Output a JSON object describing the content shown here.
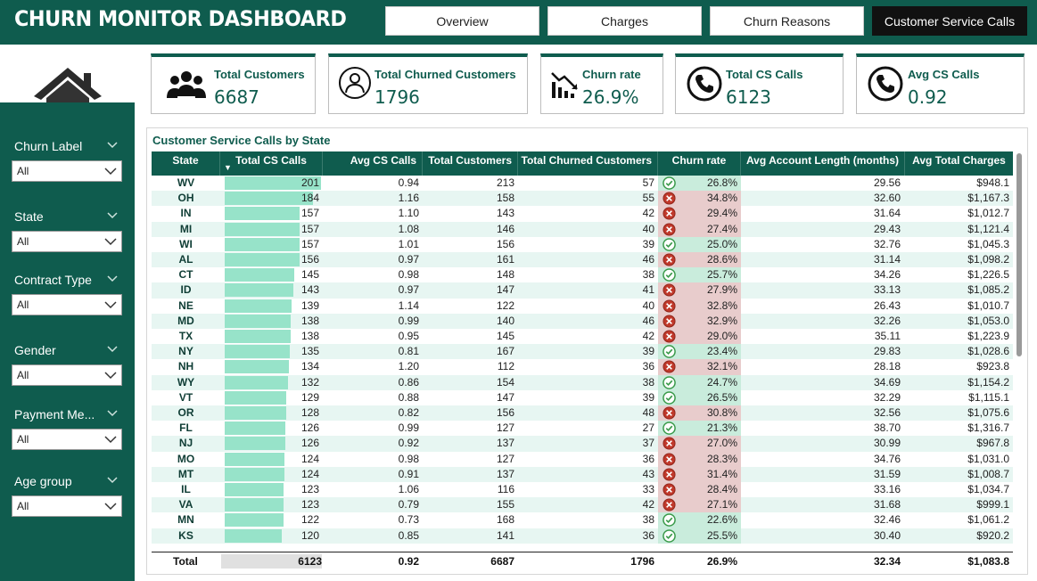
{
  "header": {
    "title": "CHURN MONITOR DASHBOARD",
    "nav": [
      {
        "label": "Overview",
        "active": false
      },
      {
        "label": "Charges",
        "active": false
      },
      {
        "label": "Churn Reasons",
        "active": false
      },
      {
        "label": "Customer Service Calls",
        "active": true
      }
    ]
  },
  "sidebar": {
    "home_icon": "home-icon",
    "filters": [
      {
        "label": "Churn Label",
        "value": "All"
      },
      {
        "label": "State",
        "value": "All"
      },
      {
        "label": "Contract Type",
        "value": "All"
      },
      {
        "label": "Gender",
        "value": "All"
      },
      {
        "label": "Payment Me...",
        "value": "All"
      },
      {
        "label": "Age group",
        "value": "All"
      }
    ]
  },
  "kpis": [
    {
      "label": "Total Customers",
      "value": "6687",
      "icon": "people-icon"
    },
    {
      "label": "Total Churned Customers",
      "value": "1796",
      "icon": "user-circle-icon"
    },
    {
      "label": "Churn rate",
      "value": "26.9%",
      "icon": "trend-down-icon"
    },
    {
      "label": "Total CS Calls",
      "value": "6123",
      "icon": "phone-icon"
    },
    {
      "label": "Avg CS Calls",
      "value": "0.92",
      "icon": "phone-icon"
    }
  ],
  "table": {
    "title": "Customer Service Calls by State",
    "columns": [
      "State",
      "Total CS Calls",
      "Avg CS Calls",
      "Total Customers",
      "Total Churned Customers",
      "Churn rate",
      "Avg Account Length (months)",
      "Avg Total Charges"
    ],
    "sort_indicator": "▼",
    "bar_max": 201,
    "rows": [
      {
        "state": "WV",
        "cs_calls": "201",
        "avg_cs": "0.94",
        "customers": "213",
        "churned": "57",
        "status": "ok",
        "churn_rate": "26.8%",
        "acct_len": "29.56",
        "charges": "$948.1"
      },
      {
        "state": "OH",
        "cs_calls": "184",
        "avg_cs": "1.16",
        "customers": "158",
        "churned": "55",
        "status": "bad",
        "churn_rate": "34.8%",
        "acct_len": "32.60",
        "charges": "$1,167.3"
      },
      {
        "state": "IN",
        "cs_calls": "157",
        "avg_cs": "1.10",
        "customers": "143",
        "churned": "42",
        "status": "bad",
        "churn_rate": "29.4%",
        "acct_len": "31.64",
        "charges": "$1,012.7"
      },
      {
        "state": "MI",
        "cs_calls": "157",
        "avg_cs": "1.08",
        "customers": "146",
        "churned": "40",
        "status": "bad",
        "churn_rate": "27.4%",
        "acct_len": "29.43",
        "charges": "$1,121.4"
      },
      {
        "state": "WI",
        "cs_calls": "157",
        "avg_cs": "1.01",
        "customers": "156",
        "churned": "39",
        "status": "ok",
        "churn_rate": "25.0%",
        "acct_len": "32.76",
        "charges": "$1,045.3"
      },
      {
        "state": "AL",
        "cs_calls": "156",
        "avg_cs": "0.97",
        "customers": "161",
        "churned": "46",
        "status": "bad",
        "churn_rate": "28.6%",
        "acct_len": "31.14",
        "charges": "$1,098.2"
      },
      {
        "state": "CT",
        "cs_calls": "145",
        "avg_cs": "0.98",
        "customers": "148",
        "churned": "38",
        "status": "ok",
        "churn_rate": "25.7%",
        "acct_len": "34.26",
        "charges": "$1,226.5"
      },
      {
        "state": "ID",
        "cs_calls": "143",
        "avg_cs": "0.97",
        "customers": "147",
        "churned": "41",
        "status": "bad",
        "churn_rate": "27.9%",
        "acct_len": "33.13",
        "charges": "$1,085.2"
      },
      {
        "state": "NE",
        "cs_calls": "139",
        "avg_cs": "1.14",
        "customers": "122",
        "churned": "40",
        "status": "bad",
        "churn_rate": "32.8%",
        "acct_len": "26.43",
        "charges": "$1,010.7"
      },
      {
        "state": "MD",
        "cs_calls": "138",
        "avg_cs": "0.99",
        "customers": "140",
        "churned": "46",
        "status": "bad",
        "churn_rate": "32.9%",
        "acct_len": "32.26",
        "charges": "$1,053.0"
      },
      {
        "state": "TX",
        "cs_calls": "138",
        "avg_cs": "0.95",
        "customers": "145",
        "churned": "42",
        "status": "bad",
        "churn_rate": "29.0%",
        "acct_len": "35.11",
        "charges": "$1,223.9"
      },
      {
        "state": "NY",
        "cs_calls": "135",
        "avg_cs": "0.81",
        "customers": "167",
        "churned": "39",
        "status": "ok",
        "churn_rate": "23.4%",
        "acct_len": "29.83",
        "charges": "$1,028.6"
      },
      {
        "state": "NH",
        "cs_calls": "134",
        "avg_cs": "1.20",
        "customers": "112",
        "churned": "36",
        "status": "bad",
        "churn_rate": "32.1%",
        "acct_len": "28.18",
        "charges": "$923.8"
      },
      {
        "state": "WY",
        "cs_calls": "132",
        "avg_cs": "0.86",
        "customers": "154",
        "churned": "38",
        "status": "ok",
        "churn_rate": "24.7%",
        "acct_len": "34.69",
        "charges": "$1,154.2"
      },
      {
        "state": "VT",
        "cs_calls": "129",
        "avg_cs": "0.88",
        "customers": "147",
        "churned": "39",
        "status": "ok",
        "churn_rate": "26.5%",
        "acct_len": "32.29",
        "charges": "$1,115.1"
      },
      {
        "state": "OR",
        "cs_calls": "128",
        "avg_cs": "0.82",
        "customers": "156",
        "churned": "48",
        "status": "bad",
        "churn_rate": "30.8%",
        "acct_len": "32.56",
        "charges": "$1,075.6"
      },
      {
        "state": "FL",
        "cs_calls": "126",
        "avg_cs": "0.99",
        "customers": "127",
        "churned": "27",
        "status": "ok",
        "churn_rate": "21.3%",
        "acct_len": "38.70",
        "charges": "$1,316.7"
      },
      {
        "state": "NJ",
        "cs_calls": "126",
        "avg_cs": "0.92",
        "customers": "137",
        "churned": "37",
        "status": "bad",
        "churn_rate": "27.0%",
        "acct_len": "30.99",
        "charges": "$967.8"
      },
      {
        "state": "MO",
        "cs_calls": "124",
        "avg_cs": "0.98",
        "customers": "127",
        "churned": "36",
        "status": "bad",
        "churn_rate": "28.3%",
        "acct_len": "34.76",
        "charges": "$1,031.0"
      },
      {
        "state": "MT",
        "cs_calls": "124",
        "avg_cs": "0.91",
        "customers": "137",
        "churned": "43",
        "status": "bad",
        "churn_rate": "31.4%",
        "acct_len": "31.59",
        "charges": "$1,008.7"
      },
      {
        "state": "IL",
        "cs_calls": "123",
        "avg_cs": "1.06",
        "customers": "116",
        "churned": "33",
        "status": "bad",
        "churn_rate": "28.4%",
        "acct_len": "33.16",
        "charges": "$1,034.7"
      },
      {
        "state": "VA",
        "cs_calls": "123",
        "avg_cs": "0.79",
        "customers": "155",
        "churned": "42",
        "status": "bad",
        "churn_rate": "27.1%",
        "acct_len": "31.68",
        "charges": "$999.1"
      },
      {
        "state": "MN",
        "cs_calls": "122",
        "avg_cs": "0.73",
        "customers": "168",
        "churned": "38",
        "status": "ok",
        "churn_rate": "22.6%",
        "acct_len": "32.46",
        "charges": "$1,061.2"
      },
      {
        "state": "KS",
        "cs_calls": "120",
        "avg_cs": "0.85",
        "customers": "141",
        "churned": "36",
        "status": "ok",
        "churn_rate": "25.5%",
        "acct_len": "30.40",
        "charges": "$920.2"
      }
    ],
    "total": {
      "label": "Total",
      "cs_calls": "6123",
      "avg_cs": "0.92",
      "customers": "6687",
      "churned": "1796",
      "churn_rate": "26.9%",
      "acct_len": "32.34",
      "charges": "$1,083.8"
    }
  },
  "colors": {
    "brand": "#0f5c4e",
    "bar": "#97e3c9",
    "churn_bad": "#e8cccc",
    "churn_ok": "#c9ecdc",
    "ok_icon": "#3a9a4a",
    "bad_icon": "#c0392b"
  }
}
